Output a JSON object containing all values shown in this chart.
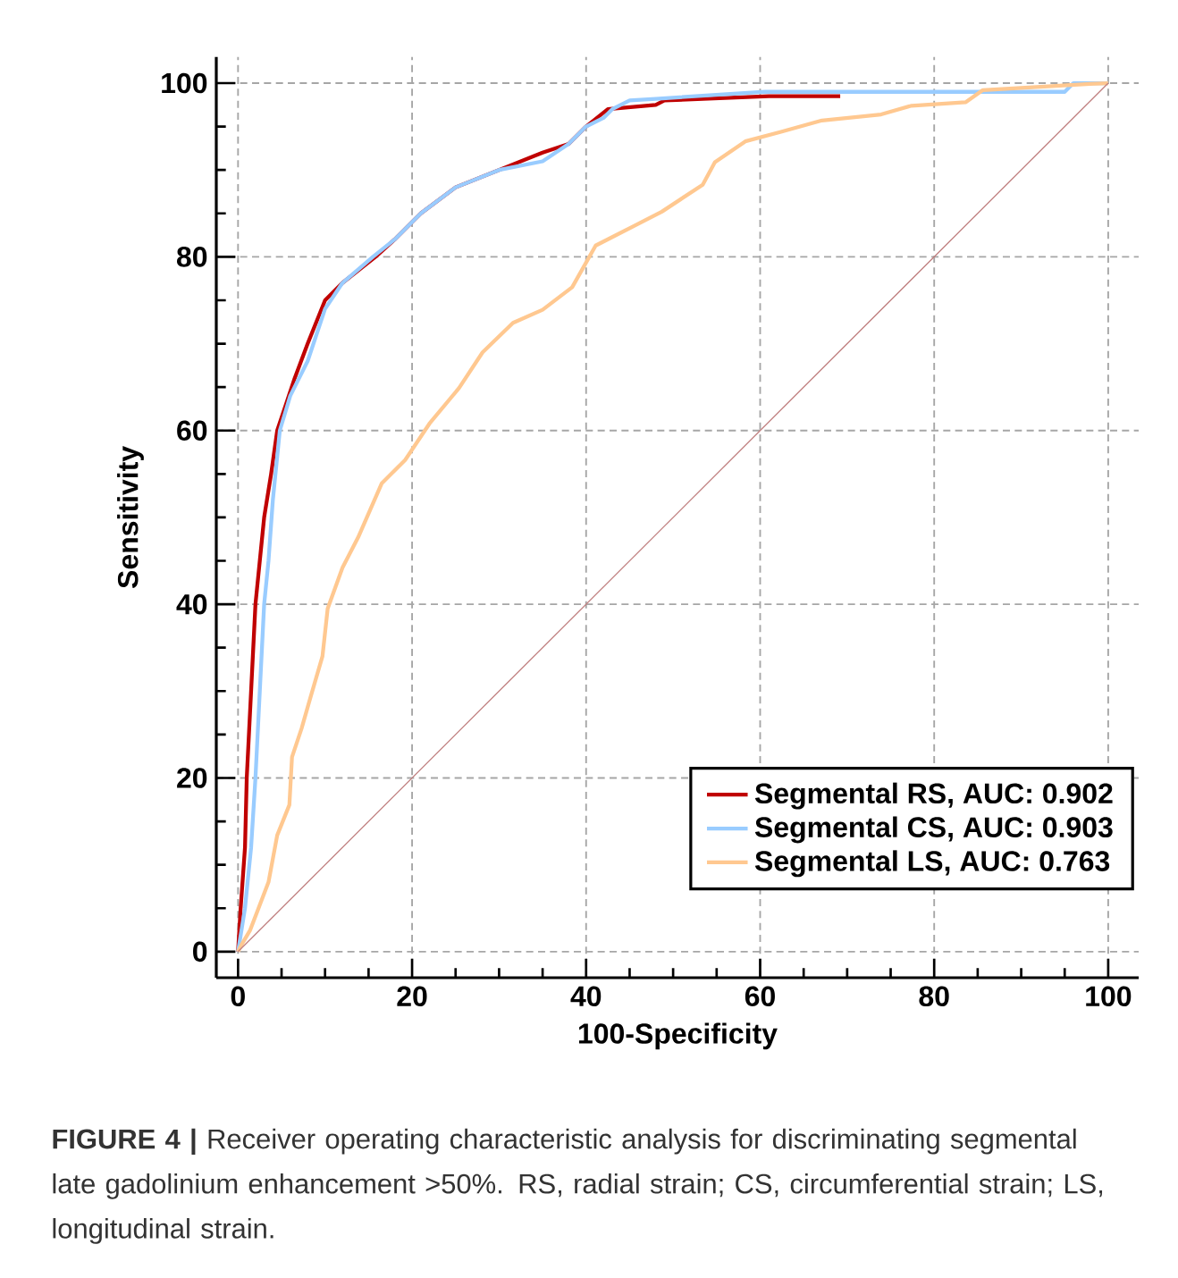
{
  "chart_data": {
    "type": "line",
    "xlabel": "100-Specificity",
    "ylabel": "Sensitivity",
    "xlim": [
      -2.5,
      103.5
    ],
    "ylim": [
      -3,
      103
    ],
    "xticks": [
      0,
      20,
      40,
      60,
      80,
      100
    ],
    "yticks": [
      0,
      20,
      40,
      60,
      80,
      100
    ],
    "grid": true,
    "legend": "bottom right",
    "marker": "none",
    "series": [
      {
        "name": "Segmental RS, AUC: 0.902",
        "color": "#c00000",
        "x": [
          0,
          0.3,
          0.8,
          1,
          1.5,
          2,
          2.5,
          3,
          3.8,
          4.5,
          5.5,
          6.5,
          8,
          10,
          12,
          15.8,
          18,
          21,
          25,
          30,
          35,
          38,
          40,
          42.5,
          48,
          49,
          61,
          69.2
        ],
        "values": [
          0,
          5,
          12,
          20,
          30,
          40,
          45,
          50,
          55,
          60,
          63,
          66,
          70,
          75,
          77,
          80,
          82,
          85,
          88,
          90,
          92,
          93,
          95,
          97,
          97.5,
          98,
          98.5,
          98.5
        ]
      },
      {
        "name": "Segmental CS, AUC: 0.903",
        "color": "#99ccff",
        "x": [
          0,
          0.8,
          1.5,
          2,
          2.5,
          3,
          3.5,
          4,
          4.8,
          6,
          8,
          10,
          12,
          15.5,
          18,
          21,
          25,
          30,
          35,
          38,
          40,
          42,
          43,
          45,
          48,
          60.6,
          95,
          96,
          100
        ],
        "values": [
          0,
          5,
          12,
          20,
          30,
          40,
          45,
          52,
          60,
          64,
          68,
          74,
          77,
          80,
          82,
          85,
          88,
          90,
          91,
          93,
          95,
          96,
          97,
          98,
          98.2,
          99,
          99,
          100,
          100
        ]
      },
      {
        "name": "Segmental LS, AUC: 0.763",
        "color": "#ffc890",
        "x": [
          0,
          0.4,
          1.4,
          3.5,
          4.5,
          5.9,
          6.2,
          7.3,
          8.3,
          9.7,
          10.3,
          12,
          13.8,
          16.5,
          19.2,
          22,
          25.4,
          28.1,
          31.6,
          35,
          38.4,
          41.1,
          45.2,
          48.7,
          53.4,
          54.8,
          58.3,
          62.4,
          67.1,
          73.9,
          77.4,
          83.6,
          85.6,
          97.9,
          100
        ],
        "values": [
          0,
          0.8,
          2.5,
          8,
          13.4,
          16.9,
          22.4,
          25.7,
          29.2,
          34,
          39.5,
          44.2,
          47.7,
          53.9,
          56.6,
          60.8,
          64.9,
          69,
          72.4,
          73.9,
          76.5,
          81.3,
          83.4,
          85.2,
          88.3,
          90.9,
          93.3,
          94.4,
          95.7,
          96.4,
          97.4,
          97.8,
          99.2,
          99.9,
          100
        ]
      },
      {
        "color": "#c08080",
        "x": [
          0,
          100
        ],
        "values": [
          0,
          100
        ]
      }
    ],
    "annotations": [
      "**FIGURE 4 |** Receiver operating characteristic analysis for discriminating segmental late gadolinium enhancement >50%. RS, radial strain; CS, circumferential strain; LS, longitudinal strain."
    ]
  }
}
